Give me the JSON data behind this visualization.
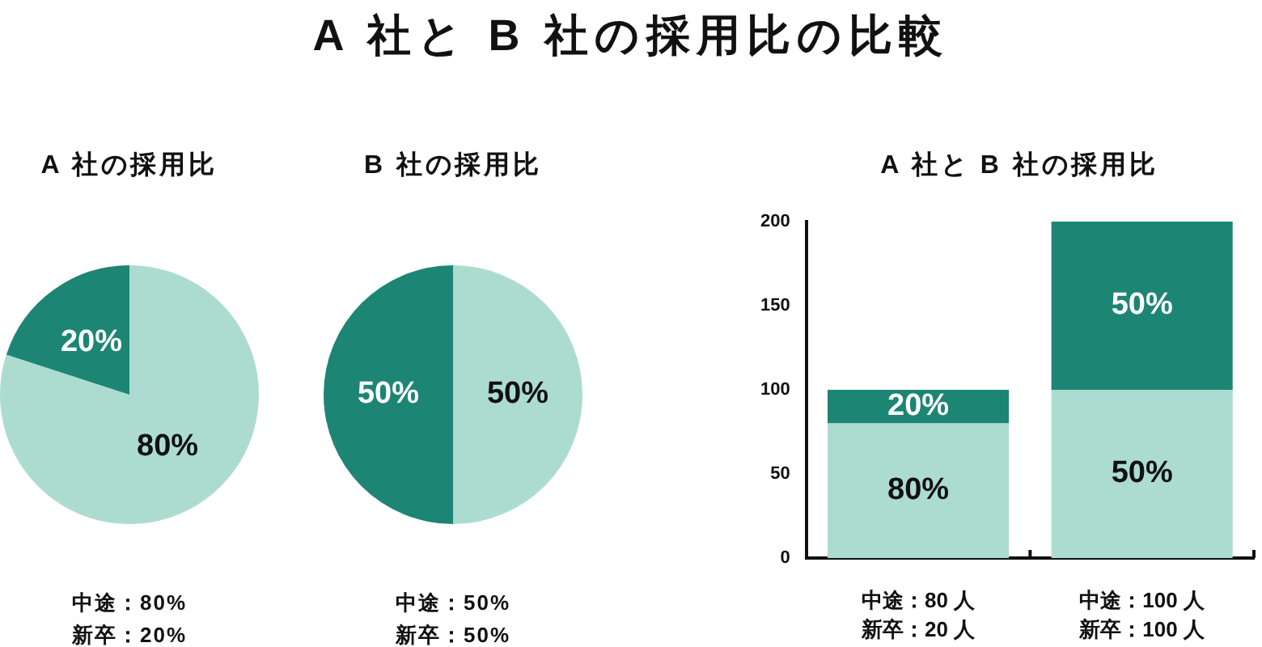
{
  "chart_data": [
    {
      "type": "other",
      "title": "A 社と B 社の採用比の比較"
    },
    {
      "type": "pie",
      "title": "A 社の採用比",
      "categories": [
        null,
        null
      ],
      "values": [
        80,
        20
      ],
      "colors": [
        "#acdccf",
        "#1d8574"
      ],
      "value_labels": [
        "80%",
        "20%"
      ],
      "annotations": [
        "中途：80%",
        "新卒：20%"
      ]
    },
    {
      "type": "pie",
      "title": "B 社の採用比",
      "categories": [
        null,
        null
      ],
      "values": [
        50,
        50
      ],
      "colors": [
        "#acdccf",
        "#1d8574"
      ],
      "value_labels": [
        "50%",
        "50%"
      ],
      "annotations": [
        "中途：50%",
        "新卒：50%"
      ]
    },
    {
      "type": "bar",
      "title": "A 社と B 社の採用比",
      "stacked": true,
      "categories": [
        "中途：80 人新卒：20 人",
        "中途：100 人新卒：100 人"
      ],
      "series": [
        {
          "color": "#acdccf",
          "values": [
            80,
            100
          ]
        },
        {
          "color": "#1d8574",
          "values": [
            20,
            100
          ]
        }
      ],
      "ylim": [
        0,
        200
      ],
      "yticks": [
        0,
        50,
        100,
        150,
        200
      ],
      "annotations": [
        "80%",
        "20%",
        "50%",
        "50%"
      ]
    }
  ]
}
